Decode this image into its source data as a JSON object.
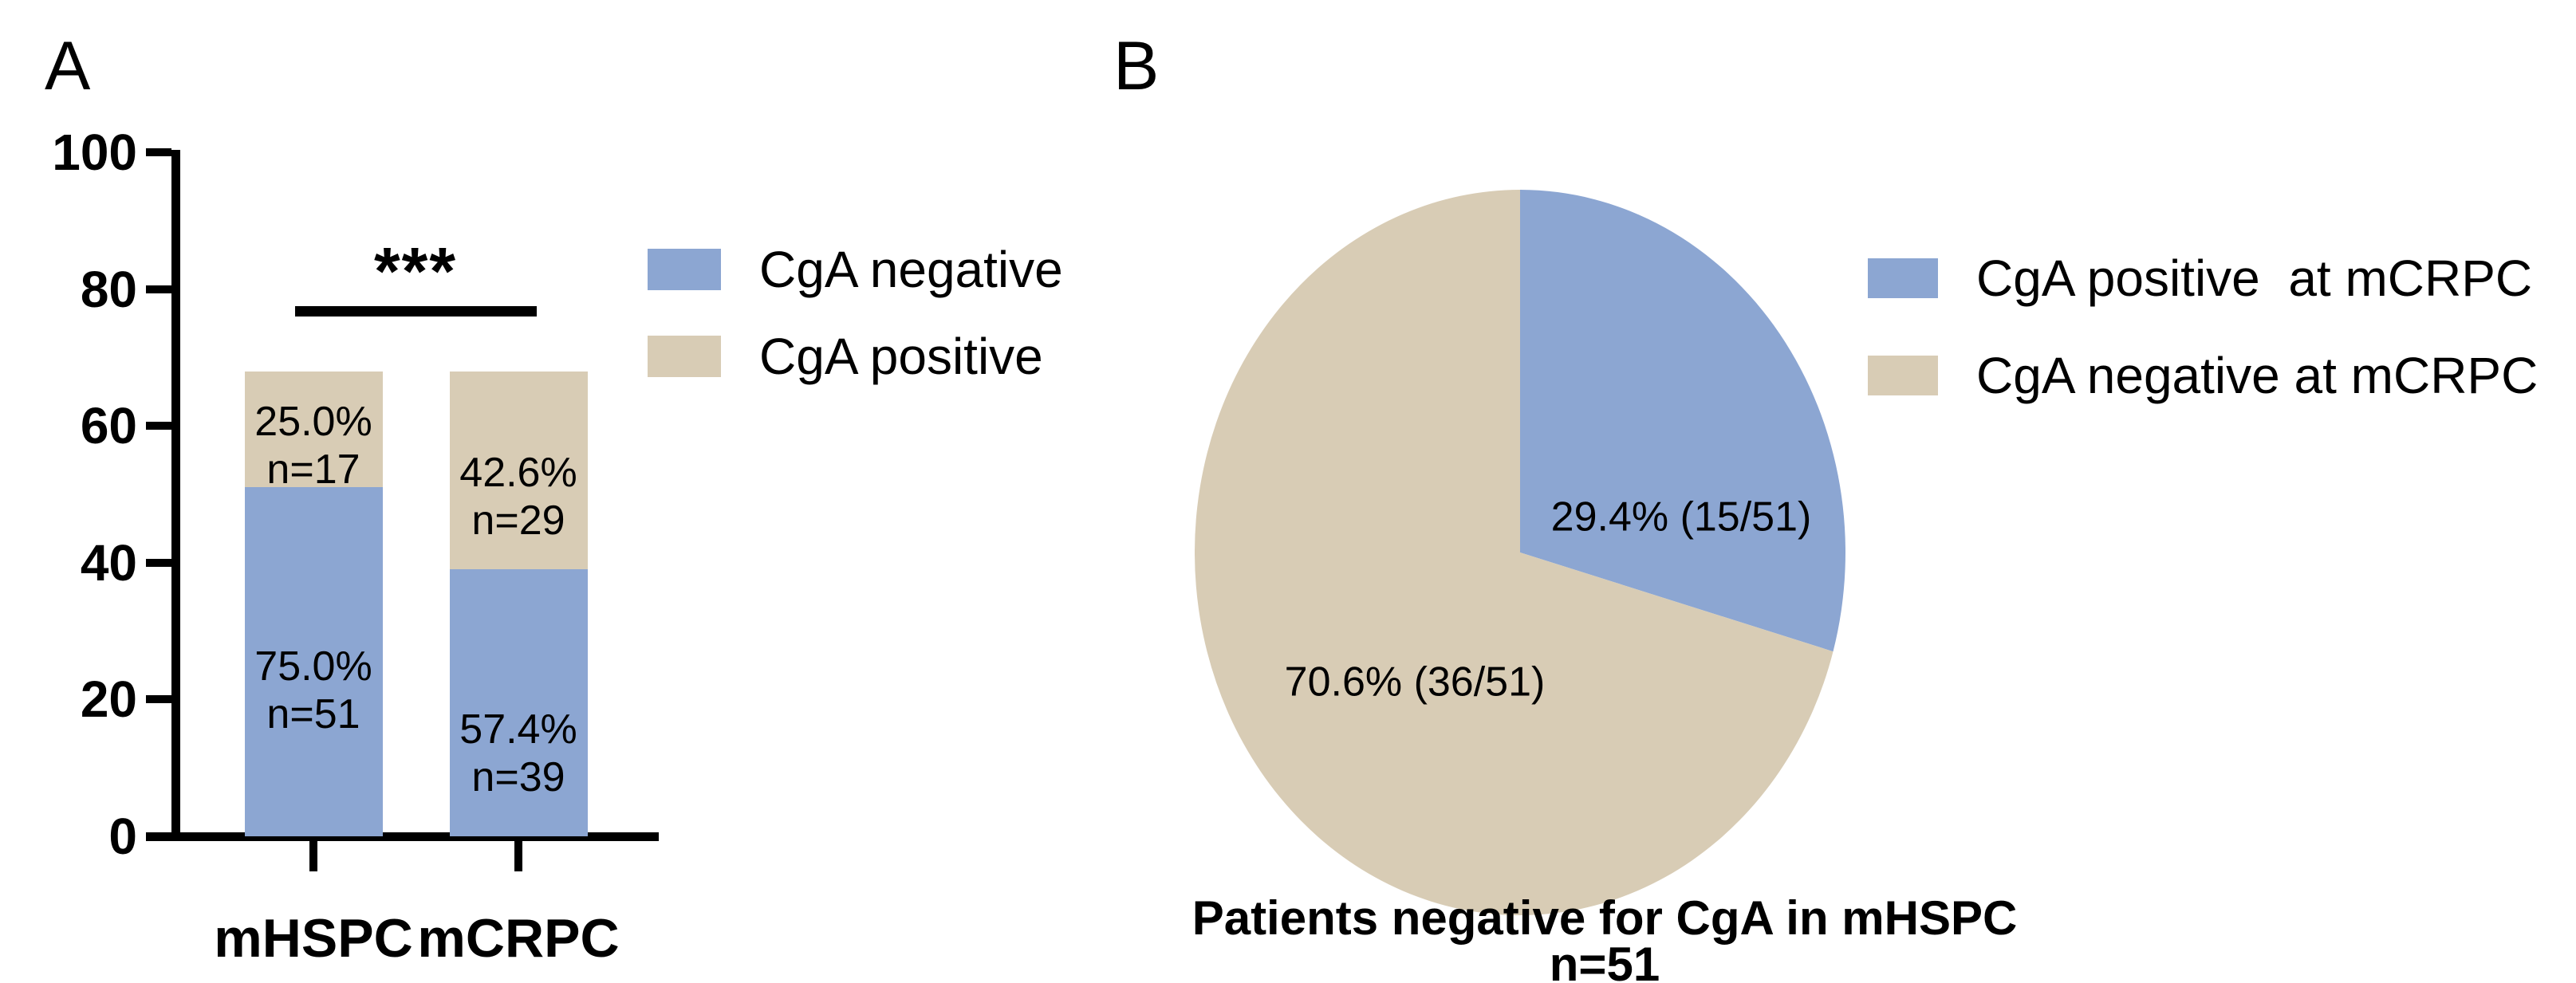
{
  "figure": {
    "background": "#ffffff",
    "text_color": "#000000",
    "accent_blue": "#8ca6d2",
    "accent_tan": "#d8ccb5"
  },
  "panel_a": {
    "label": "A",
    "significance_marker": "***",
    "legend": [
      {
        "label": "CgA negative",
        "color": "#8ca6d2"
      },
      {
        "label": "CgA positive",
        "color": "#d8ccb5"
      }
    ]
  },
  "panel_b": {
    "label": "B",
    "slices": [
      {
        "label": "29.4% (15/51)",
        "legend": "CgA positive  at mCRPC",
        "color": "#8ca6d2"
      },
      {
        "label": "70.6% (36/51)",
        "legend": "CgA negative at mCRPC",
        "color": "#d8ccb5"
      }
    ],
    "title_line1": "Patients negative for CgA in mHSPC",
    "title_line2": "n=51"
  },
  "chart_data": [
    {
      "type": "bar",
      "stacked": true,
      "title": "",
      "categories": [
        "mHSPC",
        "mCRPC"
      ],
      "series": [
        {
          "name": "CgA negative",
          "values": [
            51,
            39
          ],
          "percent_labels": [
            "75.0%",
            "57.4%"
          ],
          "n_labels": [
            "n=51",
            "n=39"
          ],
          "color": "#8ca6d2"
        },
        {
          "name": "CgA positive",
          "values": [
            17,
            29
          ],
          "percent_labels": [
            "25.0%",
            "42.6%"
          ],
          "n_labels": [
            "n=17",
            "n=29"
          ],
          "color": "#d8ccb5"
        }
      ],
      "xlabel": "",
      "ylabel": "",
      "ylim": [
        0,
        100
      ],
      "y_ticks": [
        0,
        20,
        40,
        60,
        80,
        100
      ],
      "grid": false,
      "legend_position": "right",
      "annotations": [
        {
          "type": "significance",
          "text": "***",
          "between": [
            "mHSPC",
            "mCRPC"
          ],
          "y_value": 77
        }
      ]
    },
    {
      "type": "pie",
      "slices": [
        {
          "name": "CgA positive  at mCRPC",
          "percent": 29.4,
          "count": 15,
          "total": 51,
          "label": "29.4% (15/51)",
          "color": "#8ca6d2"
        },
        {
          "name": "CgA negative at mCRPC",
          "percent": 70.6,
          "count": 36,
          "total": 51,
          "label": "70.6% (36/51)",
          "color": "#d8ccb5"
        }
      ],
      "start_angle_deg": 0,
      "direction": "clockwise",
      "title": "Patients negative for CgA in mHSPC",
      "subtitle": "n=51",
      "legend_position": "right"
    }
  ]
}
